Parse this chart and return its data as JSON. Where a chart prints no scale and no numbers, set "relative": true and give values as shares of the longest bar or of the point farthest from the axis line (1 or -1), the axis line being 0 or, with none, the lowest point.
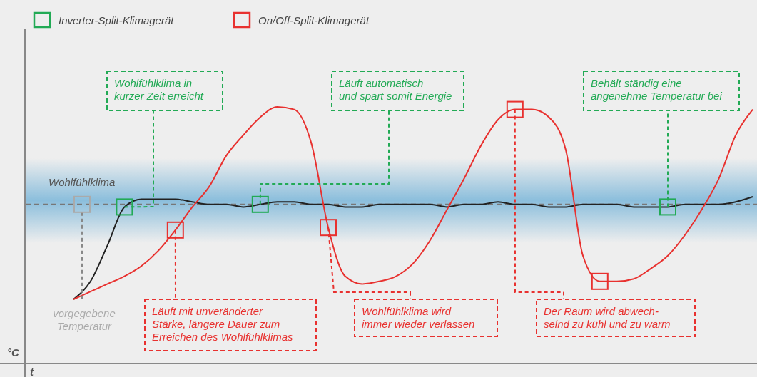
{
  "chart_data": {
    "type": "line",
    "relative": true,
    "xlabel": "t",
    "ylabel": "°C",
    "legend": "top left",
    "categories": [
      null,
      null,
      null,
      null,
      null,
      null,
      null,
      null,
      null,
      null,
      null,
      null,
      null,
      null,
      null,
      null,
      null,
      null,
      null,
      null,
      null,
      null,
      null,
      null,
      null,
      null,
      null,
      null,
      null,
      null,
      null,
      null,
      null,
      null,
      null,
      null,
      null,
      null,
      null,
      null,
      null
    ],
    "series": [
      {
        "name": "Inverter-Split-Klimagerät",
        "color": "#222222",
        "values": [
          0.25,
          0.32,
          0.46,
          0.61,
          0.64,
          0.64,
          0.64,
          0.63,
          0.62,
          0.62,
          0.61,
          0.62,
          0.63,
          0.63,
          0.62,
          0.62,
          0.61,
          0.61,
          0.62,
          0.62,
          0.62,
          0.62,
          0.61,
          0.62,
          0.62,
          0.63,
          0.62,
          0.62,
          0.61,
          0.61,
          0.62,
          0.62,
          0.62,
          0.61,
          0.61,
          0.61,
          0.62,
          0.62,
          0.62,
          0.63,
          0.65
        ]
      },
      {
        "name": "On/Off-Split-Klimagerät",
        "color": "#e8312f",
        "values": [
          0.25,
          0.28,
          0.31,
          0.34,
          0.38,
          0.44,
          0.52,
          0.61,
          0.69,
          0.81,
          0.89,
          0.96,
          1,
          0.99,
          0.86,
          0.53,
          0.34,
          0.31,
          0.32,
          0.34,
          0.39,
          0.48,
          0.6,
          0.72,
          0.85,
          0.95,
          0.99,
          0.99,
          0.96,
          0.83,
          0.42,
          0.32,
          0.32,
          0.33,
          0.37,
          0.42,
          0.5,
          0.6,
          0.72,
          0.89,
          0.99
        ]
      }
    ],
    "ref_lines": [
      {
        "axis": "y",
        "value": 0.62,
        "label": "Wohlfühlklima",
        "color": "#777777",
        "line_style": "dashed"
      }
    ],
    "bands": [
      {
        "axis": "y",
        "from": 0.47,
        "to": 0.8,
        "color": "#6aaed6"
      }
    ],
    "annotations": [
      "Wohlfühlklima in\nkurzer Zeit erreicht",
      "Läuft automatisch\nund spart somit Energie",
      "Behält ständig eine\nangenehme Temperatur bei",
      "Läuft mit unveränderter\nStärke, längere Dauer zum\nErreichen des Wohlfühlklimas",
      "Wohlfühlklima wird\nimmer wieder verlassen",
      "Der Raum wird abwech-\nselnd zu kühl und zu warm",
      "vorgegebene\nTemperatur"
    ]
  }
}
